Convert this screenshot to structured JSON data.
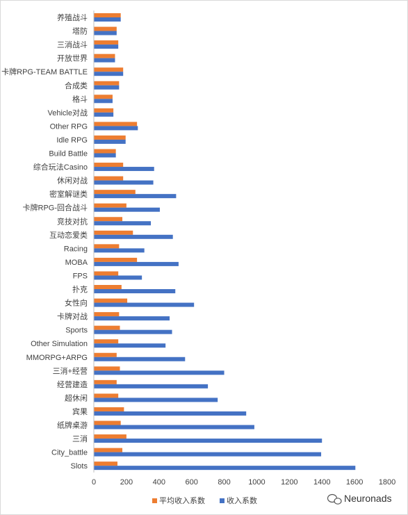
{
  "chart_data": {
    "type": "bar",
    "orientation": "horizontal",
    "categories": [
      "养殖战斗",
      "塔防",
      "三消战斗",
      "开放世界",
      "卡牌RPG-TEAM BATTLE",
      "合成类",
      "格斗",
      "Vehicle对战",
      "Other RPG",
      "Idle RPG",
      "Build Battle",
      "综合玩法Casino",
      "休闲对战",
      "密室解谜类",
      "卡牌RPG-回合战斗",
      "竞技对抗",
      "互动恋爱类",
      "Racing",
      "MOBA",
      "FPS",
      "扑克",
      "女性向",
      "卡牌对战",
      "Sports",
      "Other Simulation",
      "MMORPG+ARPG",
      "三消+经营",
      "经营建造",
      "超休闲",
      "宾果",
      "纸牌桌游",
      "三消",
      "City_battle",
      "Slots"
    ],
    "series": [
      {
        "name": "平均收入系数",
        "color": "#ED7D31",
        "values": [
          165,
          140,
          150,
          130,
          180,
          155,
          115,
          120,
          265,
          195,
          135,
          180,
          180,
          255,
          200,
          175,
          240,
          155,
          265,
          150,
          170,
          205,
          155,
          160,
          150,
          140,
          160,
          140,
          150,
          185,
          165,
          200,
          175,
          145
        ]
      },
      {
        "name": "收入系数",
        "color": "#4472C4",
        "values": [
          165,
          140,
          150,
          130,
          180,
          155,
          115,
          120,
          270,
          195,
          135,
          370,
          365,
          505,
          405,
          350,
          485,
          310,
          520,
          295,
          500,
          615,
          465,
          480,
          440,
          560,
          800,
          700,
          760,
          935,
          985,
          1400,
          1395,
          1605
        ]
      }
    ],
    "xlim": [
      0,
      1800
    ],
    "xticks": [
      "0",
      "200",
      "400",
      "600",
      "800",
      "1000",
      "1200",
      "1400",
      "1600",
      "1800"
    ],
    "grid": false,
    "legend_position": "bottom"
  },
  "watermark": {
    "text": "Neuronads",
    "icon": "wechat-icon"
  }
}
